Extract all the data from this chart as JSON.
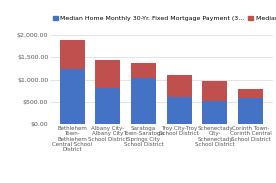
{
  "categories": [
    "Bethlehem\nTown-\nBethlehem\nCentral School\nDistrict",
    "Albany City-\nAlbany City\nSchool District",
    "Saratoga\nTown-Saratoga\nSprings City\nSchool District",
    "Troy City-Troy\nSchool District",
    "Schenectady\nCity-\nSchenectady\nSchool District",
    "Corinth Town-\nCorinth Central\nSchool District"
  ],
  "mortgage": [
    1250,
    820,
    1040,
    620,
    520,
    590
  ],
  "tax": [
    640,
    630,
    330,
    490,
    460,
    210
  ],
  "mortgage_color": "#4472C4",
  "tax_color": "#C0504D",
  "background_color": "#FFFFFF",
  "grid_color": "#D9D9D9",
  "ylim": [
    0,
    2050
  ],
  "yticks": [
    0,
    500,
    1000,
    1500,
    2000
  ],
  "ytick_labels": [
    "$0.00",
    "$500.00",
    "$1,000.00",
    "$1,500.00",
    "$2,000.00"
  ],
  "legend_mortgage": "Median Home Monthly 30-Yr. Fixed Mortgage Payment (3...",
  "legend_tax": "Median Home Monthly Tax Payment",
  "tick_fontsize": 4.5,
  "legend_fontsize": 4.5,
  "xlabel_fontsize": 4.0
}
